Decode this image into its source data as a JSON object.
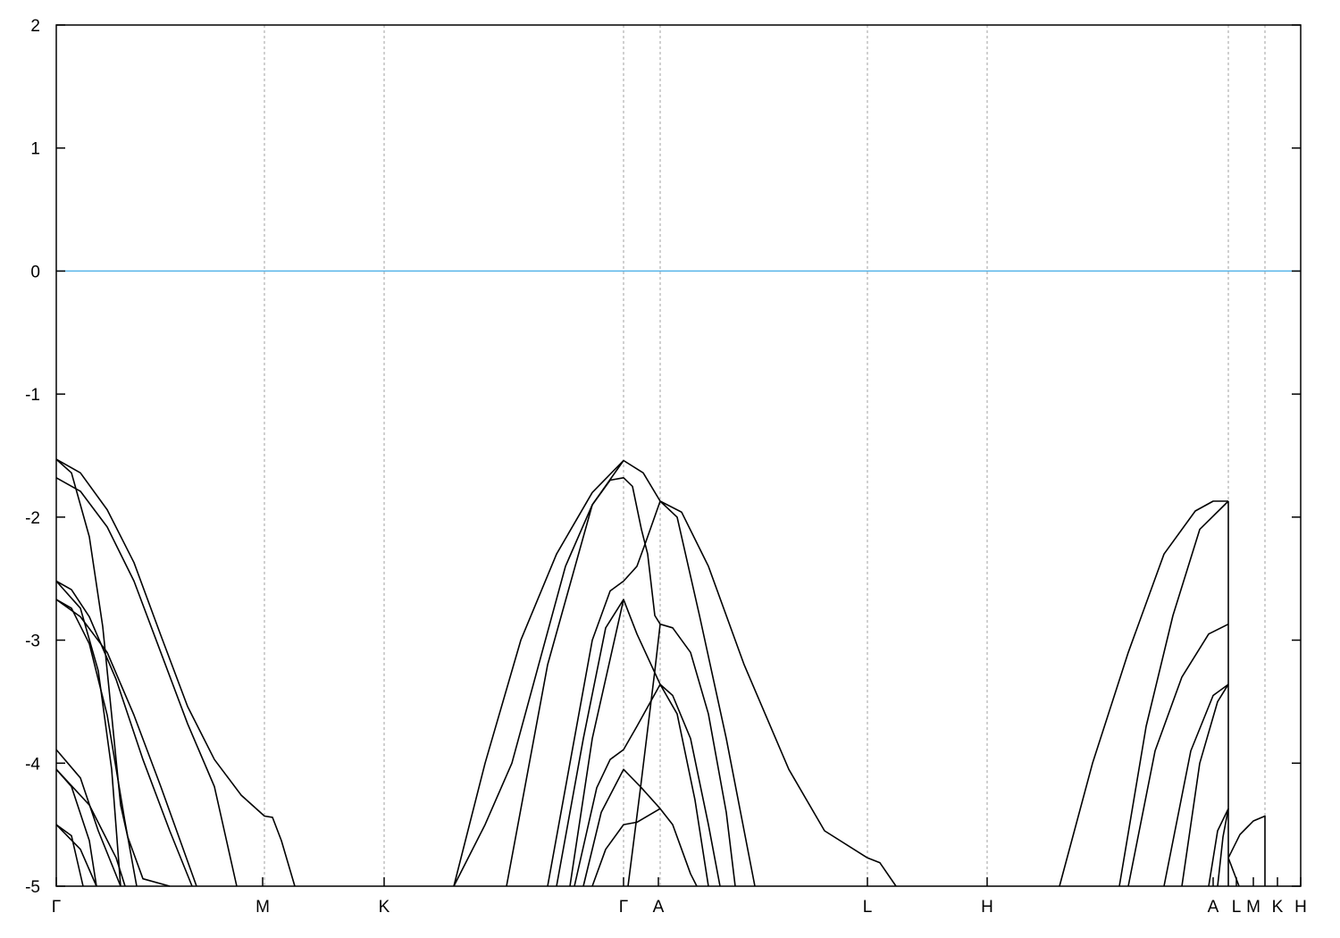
{
  "chart_data": {
    "type": "line",
    "title": "",
    "xlabel": "",
    "ylabel": "",
    "xlim": [
      0,
      13.93
    ],
    "ylim": [
      -5,
      2
    ],
    "yticks": [
      2,
      1,
      0,
      -1,
      -2,
      -3,
      -4,
      -5
    ],
    "xticks": [
      {
        "label": "Γ",
        "x": 0
      },
      {
        "label": "M",
        "x": 2.31
      },
      {
        "label": "K",
        "x": 3.67
      },
      {
        "label": "Γ",
        "x": 6.35
      },
      {
        "label": "A",
        "x": 6.74
      },
      {
        "label": "L",
        "x": 9.08
      },
      {
        "label": "H",
        "x": 10.42
      },
      {
        "label": "A",
        "x": 12.95
      },
      {
        "label": "L",
        "x": 13.21
      },
      {
        "label": "M",
        "x": 13.4
      },
      {
        "label": "K",
        "x": 13.67
      },
      {
        "label": "H",
        "x": 13.93
      }
    ],
    "vertical_gridlines": [
      2.33,
      3.67,
      6.35,
      6.76,
      9.08,
      10.42,
      13.12,
      13.53
    ],
    "grid": "vertical dashed at high-symmetry points",
    "fermi_level": {
      "y": 0,
      "color": "#56b4e9"
    },
    "band_color": "#000000",
    "bands": [
      [
        [
          0,
          -1.53
        ],
        [
          0.27,
          -1.64
        ],
        [
          0.57,
          -1.94
        ],
        [
          0.87,
          -2.37
        ],
        [
          1.17,
          -2.96
        ],
        [
          1.47,
          -3.54
        ],
        [
          1.77,
          -3.97
        ],
        [
          2.07,
          -4.26
        ],
        [
          2.33,
          -4.43
        ],
        [
          2.42,
          -4.44
        ],
        [
          2.52,
          -4.63
        ],
        [
          2.67,
          -5
        ]
      ],
      [
        [
          0,
          -1.68
        ],
        [
          0.27,
          -1.79
        ],
        [
          0.57,
          -2.08
        ],
        [
          0.87,
          -2.52
        ],
        [
          1.17,
          -3.1
        ],
        [
          1.47,
          -3.68
        ],
        [
          1.77,
          -4.19
        ],
        [
          2.02,
          -5
        ]
      ],
      [
        [
          0,
          -1.53
        ],
        [
          0.17,
          -1.64
        ],
        [
          0.37,
          -2.16
        ],
        [
          0.52,
          -2.89
        ],
        [
          0.62,
          -3.61
        ],
        [
          0.72,
          -4.34
        ],
        [
          0.8,
          -4.6
        ],
        [
          0.97,
          -4.94
        ],
        [
          1.27,
          -5
        ]
      ],
      [
        [
          0,
          -2.52
        ],
        [
          0.17,
          -2.59
        ],
        [
          0.37,
          -2.81
        ],
        [
          0.67,
          -3.32
        ],
        [
          0.97,
          -3.97
        ],
        [
          1.27,
          -4.55
        ],
        [
          1.52,
          -5
        ]
      ],
      [
        [
          0,
          -2.67
        ],
        [
          0.17,
          -2.74
        ],
        [
          0.37,
          -3.03
        ],
        [
          0.57,
          -3.61
        ],
        [
          0.77,
          -4.48
        ],
        [
          0.9,
          -5
        ]
      ],
      [
        [
          0,
          -2.67
        ],
        [
          0.27,
          -2.81
        ],
        [
          0.57,
          -3.1
        ],
        [
          0.87,
          -3.61
        ],
        [
          1.17,
          -4.19
        ],
        [
          1.57,
          -5
        ]
      ],
      [
        [
          0,
          -2.52
        ],
        [
          0.27,
          -2.74
        ],
        [
          0.47,
          -3.25
        ],
        [
          0.62,
          -4.05
        ],
        [
          0.72,
          -5
        ]
      ],
      [
        [
          0,
          -3.89
        ],
        [
          0.27,
          -4.12
        ],
        [
          0.47,
          -4.55
        ],
        [
          0.72,
          -5
        ]
      ],
      [
        [
          0,
          -4.05
        ],
        [
          0.17,
          -4.19
        ],
        [
          0.37,
          -4.63
        ],
        [
          0.45,
          -5
        ]
      ],
      [
        [
          0,
          -4.05
        ],
        [
          0.37,
          -4.34
        ],
        [
          0.67,
          -4.77
        ],
        [
          0.77,
          -5
        ]
      ],
      [
        [
          0,
          -4.5
        ],
        [
          0.17,
          -4.59
        ],
        [
          0.3,
          -5
        ]
      ],
      [
        [
          0,
          -4.5
        ],
        [
          0.27,
          -4.7
        ],
        [
          0.45,
          -5
        ]
      ],
      [
        [
          4.45,
          -5
        ],
        [
          4.8,
          -4.0
        ],
        [
          5.2,
          -3.0
        ],
        [
          5.6,
          -2.3
        ],
        [
          6.0,
          -1.8
        ],
        [
          6.35,
          -1.54
        ],
        [
          6.57,
          -1.64
        ],
        [
          6.76,
          -1.87
        ],
        [
          7.0,
          -1.96
        ],
        [
          7.3,
          -2.4
        ],
        [
          7.7,
          -3.2
        ],
        [
          8.2,
          -4.05
        ],
        [
          8.6,
          -4.55
        ],
        [
          9.08,
          -4.77
        ],
        [
          9.22,
          -4.81
        ],
        [
          9.4,
          -5
        ]
      ],
      [
        [
          6.76,
          -1.87
        ],
        [
          6.95,
          -2.0
        ],
        [
          7.2,
          -2.8
        ],
        [
          7.5,
          -3.8
        ],
        [
          7.82,
          -5
        ]
      ],
      [
        [
          4.45,
          -5
        ],
        [
          4.8,
          -4.5
        ],
        [
          5.1,
          -4.0
        ],
        [
          5.4,
          -3.2
        ],
        [
          5.7,
          -2.4
        ],
        [
          6.0,
          -1.9
        ],
        [
          6.2,
          -1.7
        ],
        [
          6.35,
          -1.68
        ],
        [
          6.45,
          -1.75
        ],
        [
          6.55,
          -2.1
        ],
        [
          6.62,
          -2.3
        ],
        [
          6.7,
          -2.8
        ],
        [
          6.76,
          -2.87
        ],
        [
          6.9,
          -2.9
        ],
        [
          7.1,
          -3.1
        ],
        [
          7.3,
          -3.6
        ],
        [
          7.5,
          -4.4
        ],
        [
          7.6,
          -5
        ]
      ],
      [
        [
          5.04,
          -5
        ],
        [
          5.5,
          -3.2
        ],
        [
          6.0,
          -1.9
        ],
        [
          6.35,
          -1.54
        ]
      ],
      [
        [
          5.5,
          -5
        ],
        [
          5.7,
          -4.2
        ],
        [
          6.0,
          -3.0
        ],
        [
          6.2,
          -2.6
        ],
        [
          6.35,
          -2.52
        ],
        [
          6.5,
          -2.4
        ],
        [
          6.6,
          -2.2
        ],
        [
          6.76,
          -1.87
        ]
      ],
      [
        [
          5.6,
          -5
        ],
        [
          5.9,
          -3.8
        ],
        [
          6.15,
          -2.9
        ],
        [
          6.35,
          -2.67
        ],
        [
          6.5,
          -2.95
        ],
        [
          6.76,
          -3.36
        ],
        [
          6.9,
          -3.45
        ],
        [
          7.1,
          -3.8
        ],
        [
          7.3,
          -4.5
        ],
        [
          7.43,
          -5
        ]
      ],
      [
        [
          5.75,
          -5
        ],
        [
          6.0,
          -3.8
        ],
        [
          6.35,
          -2.67
        ]
      ],
      [
        [
          6.76,
          -3.36
        ],
        [
          6.95,
          -3.6
        ],
        [
          7.15,
          -4.3
        ],
        [
          7.3,
          -5
        ]
      ],
      [
        [
          5.8,
          -5
        ],
        [
          6.05,
          -4.2
        ],
        [
          6.2,
          -3.97
        ],
        [
          6.35,
          -3.89
        ],
        [
          6.5,
          -3.7
        ],
        [
          6.76,
          -3.36
        ]
      ],
      [
        [
          5.9,
          -5
        ],
        [
          6.1,
          -4.4
        ],
        [
          6.35,
          -4.05
        ],
        [
          6.55,
          -4.2
        ],
        [
          6.76,
          -4.37
        ],
        [
          6.9,
          -4.5
        ],
        [
          7.1,
          -4.9
        ],
        [
          7.17,
          -5
        ]
      ],
      [
        [
          6.0,
          -5
        ],
        [
          6.15,
          -4.7
        ],
        [
          6.35,
          -4.5
        ],
        [
          6.5,
          -4.48
        ],
        [
          6.76,
          -4.37
        ]
      ],
      [
        [
          6.4,
          -5
        ],
        [
          6.54,
          -4.2
        ],
        [
          6.7,
          -3.25
        ],
        [
          6.76,
          -2.87
        ]
      ],
      [
        [
          11.23,
          -5
        ],
        [
          11.6,
          -4.0
        ],
        [
          12.0,
          -3.1
        ],
        [
          12.4,
          -2.3
        ],
        [
          12.75,
          -1.95
        ],
        [
          12.95,
          -1.87
        ],
        [
          13.12,
          -1.87
        ]
      ],
      [
        [
          11.9,
          -5
        ],
        [
          12.2,
          -3.7
        ],
        [
          12.5,
          -2.8
        ],
        [
          12.8,
          -2.1
        ],
        [
          13.12,
          -1.87
        ]
      ],
      [
        [
          12.0,
          -5
        ],
        [
          12.3,
          -3.9
        ],
        [
          12.6,
          -3.3
        ],
        [
          12.9,
          -2.95
        ],
        [
          13.12,
          -2.87
        ]
      ],
      [
        [
          12.4,
          -5
        ],
        [
          12.7,
          -3.9
        ],
        [
          12.95,
          -3.45
        ],
        [
          13.12,
          -3.36
        ]
      ],
      [
        [
          12.6,
          -5
        ],
        [
          12.8,
          -4.0
        ],
        [
          13.0,
          -3.5
        ],
        [
          13.12,
          -3.36
        ]
      ],
      [
        [
          12.9,
          -5
        ],
        [
          13.0,
          -4.55
        ],
        [
          13.12,
          -4.37
        ]
      ],
      [
        [
          13.0,
          -5
        ],
        [
          13.06,
          -4.6
        ],
        [
          13.12,
          -4.37
        ]
      ],
      [
        [
          13.12,
          -1.87
        ],
        [
          13.12,
          -5
        ]
      ],
      [
        [
          13.12,
          -4.77
        ],
        [
          13.25,
          -4.58
        ],
        [
          13.4,
          -4.47
        ],
        [
          13.53,
          -4.43
        ],
        [
          13.53,
          -5
        ]
      ],
      [
        [
          13.12,
          -4.77
        ],
        [
          13.24,
          -5
        ]
      ]
    ]
  }
}
